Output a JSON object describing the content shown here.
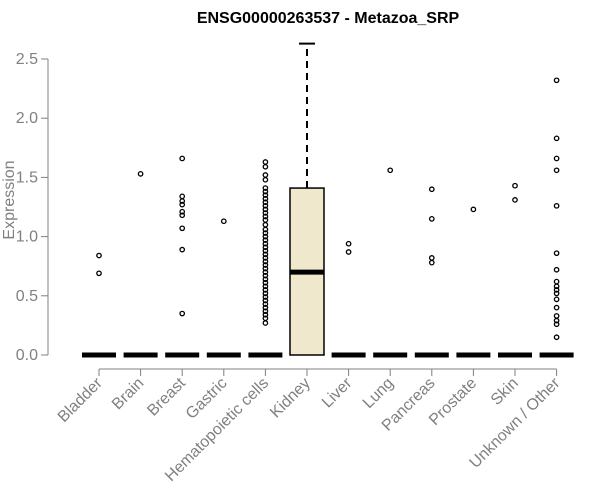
{
  "chart_data": {
    "type": "box",
    "title": "ENSG00000263537 - Metazoa_SRP",
    "xlabel": "",
    "ylabel": "Expression",
    "ylim": [
      0,
      2.65
    ],
    "yticks": [
      0.0,
      0.5,
      1.0,
      1.5,
      2.0,
      2.5
    ],
    "ytick_labels": [
      "0.0",
      "0.5",
      "1.0",
      "1.5",
      "2.0",
      "2.5"
    ],
    "categories": [
      "Bladder",
      "Brain",
      "Breast",
      "Gastric",
      "Hematopoietic cells",
      "Kidney",
      "Liver",
      "Lung",
      "Pancreas",
      "Prostate",
      "Skin",
      "Unknown / Other"
    ],
    "boxes": [
      {
        "category": "Bladder",
        "q1": 0,
        "median": 0,
        "q3": 0,
        "whisker_low": 0,
        "whisker_high": 0,
        "outliers": [
          0.84,
          0.69
        ]
      },
      {
        "category": "Brain",
        "q1": 0,
        "median": 0,
        "q3": 0,
        "whisker_low": 0,
        "whisker_high": 0,
        "outliers": [
          1.53
        ]
      },
      {
        "category": "Breast",
        "q1": 0,
        "median": 0,
        "q3": 0,
        "whisker_low": 0,
        "whisker_high": 0,
        "outliers": [
          1.66,
          1.34,
          1.3,
          1.27,
          1.21,
          1.18,
          1.07,
          0.89,
          0.35
        ]
      },
      {
        "category": "Gastric",
        "q1": 0,
        "median": 0,
        "q3": 0,
        "whisker_low": 0,
        "whisker_high": 0,
        "outliers": [
          1.13
        ]
      },
      {
        "category": "Hematopoietic cells",
        "q1": 0,
        "median": 0,
        "q3": 0,
        "whisker_low": 0,
        "whisker_high": 0,
        "outliers": [
          1.63,
          1.59,
          1.52,
          1.48,
          1.41,
          1.38,
          1.35,
          1.32,
          1.29,
          1.26,
          1.23,
          1.2,
          1.17,
          1.14,
          1.1,
          1.06,
          1.03,
          1.0,
          0.97,
          0.94,
          0.91,
          0.88,
          0.85,
          0.82,
          0.79,
          0.76,
          0.73,
          0.7,
          0.67,
          0.64,
          0.61,
          0.58,
          0.55,
          0.52,
          0.49,
          0.46,
          0.43,
          0.4,
          0.37,
          0.34,
          0.31,
          0.27
        ]
      },
      {
        "category": "Kidney",
        "q1": 0,
        "median": 0.7,
        "q3": 1.41,
        "whisker_low": 0,
        "whisker_high": 2.63,
        "outliers": []
      },
      {
        "category": "Liver",
        "q1": 0,
        "median": 0,
        "q3": 0,
        "whisker_low": 0,
        "whisker_high": 0,
        "outliers": [
          0.94,
          0.87
        ]
      },
      {
        "category": "Lung",
        "q1": 0,
        "median": 0,
        "q3": 0,
        "whisker_low": 0,
        "whisker_high": 0,
        "outliers": [
          1.56
        ]
      },
      {
        "category": "Pancreas",
        "q1": 0,
        "median": 0,
        "q3": 0,
        "whisker_low": 0,
        "whisker_high": 0,
        "outliers": [
          1.4,
          1.15,
          0.82,
          0.78
        ]
      },
      {
        "category": "Prostate",
        "q1": 0,
        "median": 0,
        "q3": 0,
        "whisker_low": 0,
        "whisker_high": 0,
        "outliers": [
          1.23
        ]
      },
      {
        "category": "Skin",
        "q1": 0,
        "median": 0,
        "q3": 0,
        "whisker_low": 0,
        "whisker_high": 0,
        "outliers": [
          1.43,
          1.31
        ]
      },
      {
        "category": "Unknown / Other",
        "q1": 0,
        "median": 0,
        "q3": 0,
        "whisker_low": 0,
        "whisker_high": 0,
        "outliers": [
          2.32,
          1.83,
          1.66,
          1.56,
          1.26,
          0.86,
          0.72,
          0.62,
          0.58,
          0.55,
          0.52,
          0.47,
          0.4,
          0.33,
          0.29,
          0.26,
          0.15
        ]
      }
    ],
    "colors": {
      "box_fill": "#efe8cd",
      "box_stroke": "#000000",
      "tick_text": "#808080",
      "axis_line": "#808080"
    }
  }
}
